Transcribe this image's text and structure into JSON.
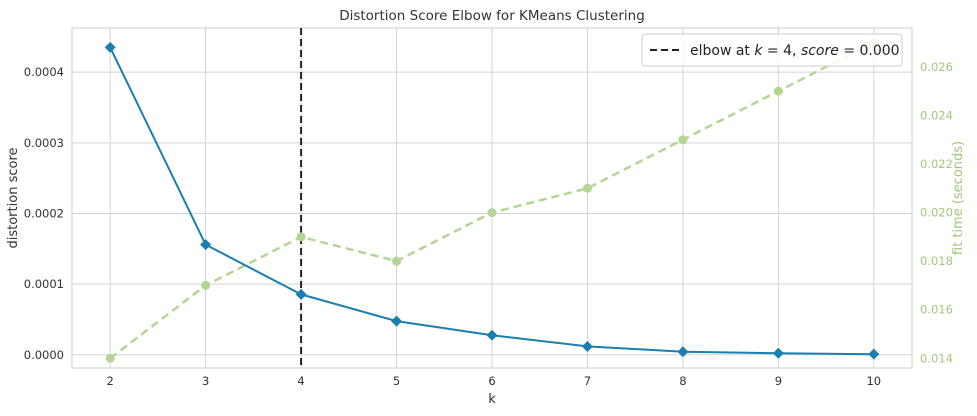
{
  "chart_data": {
    "type": "line",
    "title": "Distortion Score Elbow for KMeans Clustering",
    "xlabel": "k",
    "ylabel": "distortion score",
    "y2label": "fit time (seconds)",
    "x": [
      2,
      3,
      4,
      5,
      6,
      7,
      8,
      9,
      10
    ],
    "xlim": [
      1.6,
      10.4
    ],
    "ylim": [
      -1.87e-05,
      0.0004625
    ],
    "y2lim": [
      0.0136,
      0.0276
    ],
    "yticks": [
      "0.0000",
      "0.0001",
      "0.0002",
      "0.0003",
      "0.0004"
    ],
    "y2ticks": [
      "0.014",
      "0.016",
      "0.018",
      "0.020",
      "0.022",
      "0.024",
      "0.026"
    ],
    "grid": true,
    "legend": {
      "placement": "top-right",
      "prefix": "elbow at ",
      "k_var": "k",
      "k_eq": " = 4, ",
      "score_var": "score",
      "score_eq": " = 0.000"
    },
    "elbow_k": 4,
    "series": [
      {
        "axis": "left",
        "values": [
          0.000435,
          0.000156,
          8.55e-05,
          4.77e-05,
          2.76e-05,
          1.18e-05,
          4.3e-06,
          2.2e-06,
          9e-07
        ],
        "color": "#1a7faf",
        "style": "solid",
        "marker": "diamond"
      },
      {
        "axis": "right",
        "values": [
          0.014,
          0.017,
          0.019,
          0.018,
          0.02,
          0.021,
          0.023,
          0.025,
          0.027
        ],
        "color": "#b3d693",
        "style": "dashed",
        "marker": "circle"
      }
    ],
    "colors": {
      "frame": "#cccccc",
      "grid": "#d3d3d3",
      "elbow_line": "#222222",
      "text": "#333333",
      "right_axis_text": "#a2c77d"
    }
  }
}
